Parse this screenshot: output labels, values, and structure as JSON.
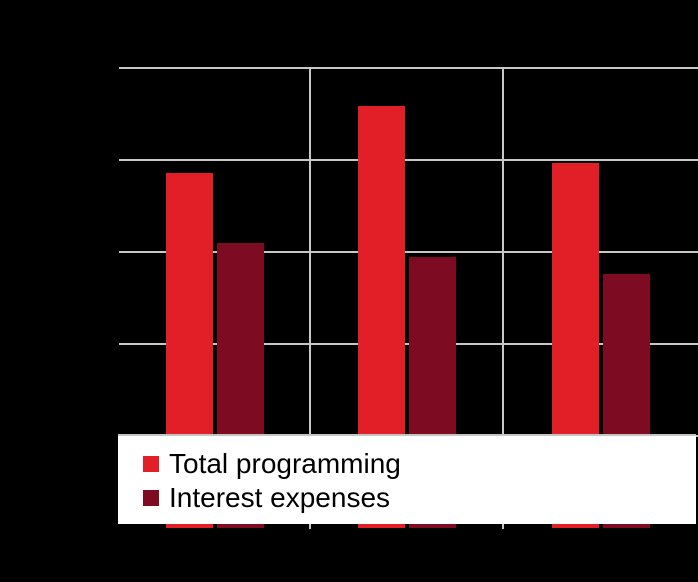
{
  "colors": {
    "background": "#000000",
    "gridline": "#c7c7c7",
    "bar_red": "#e21e26",
    "bar_dark_red": "#7d0b21",
    "legend_background": "#ffffff",
    "legend_border": "#c4c4c4",
    "legend_text": "#000000"
  },
  "legend": {
    "items": [
      {
        "label": "Total programming",
        "swatch_color": "#e21e26"
      },
      {
        "label": "Interest expenses",
        "swatch_color": "#7d0b21"
      }
    ]
  },
  "chart_data": {
    "type": "bar",
    "categories": [
      "",
      "",
      ""
    ],
    "series": [
      {
        "name": "Total programming",
        "color": "#e21e26",
        "values": [
          3.86,
          4.59,
          3.97
        ]
      },
      {
        "name": "Interest expenses",
        "color": "#7d0b21",
        "values": [
          3.1,
          2.95,
          2.76
        ]
      }
    ],
    "ylim": [
      0,
      5
    ],
    "gridlines": {
      "horizontal": true,
      "vertical": true
    },
    "legend_position": "bottom-overlay",
    "axis_labels_visible": false,
    "title_visible": false,
    "value_units": "gridline-intervals (axis tick labels and category labels are not visible in the image)"
  }
}
